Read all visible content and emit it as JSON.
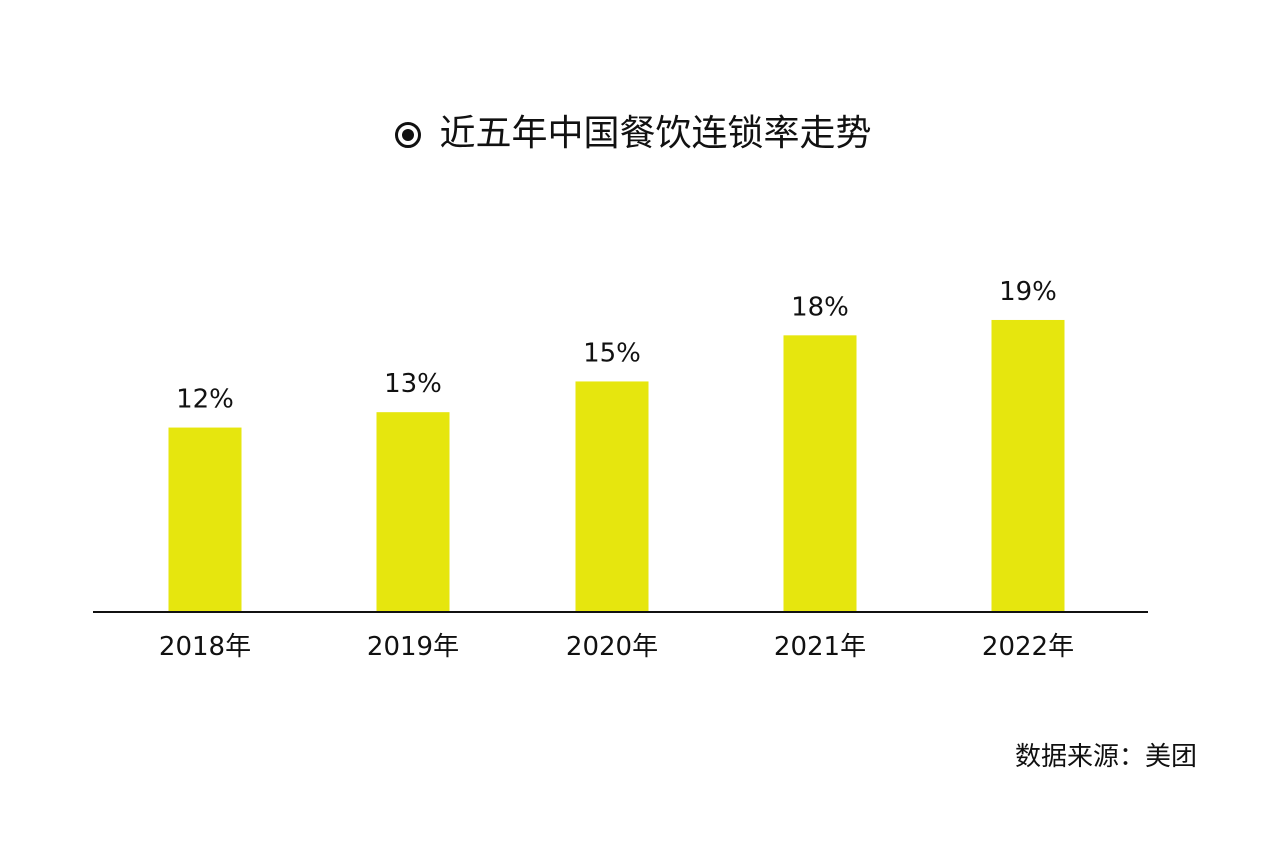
{
  "chart_data": {
    "type": "bar",
    "title": "近五年中国餐饮连锁率走势",
    "categories": [
      "2018年",
      "2019年",
      "2020年",
      "2021年",
      "2022年"
    ],
    "values": [
      12,
      13,
      15,
      18,
      19
    ],
    "value_labels": [
      "12%",
      "13%",
      "15%",
      "18%",
      "19%"
    ],
    "unit": "%",
    "ylim": [
      0,
      21.6
    ],
    "grid": false,
    "legend": "none",
    "bar_color": "#e6e60e",
    "axis_color": "#111111"
  },
  "source": "数据来源：美团"
}
